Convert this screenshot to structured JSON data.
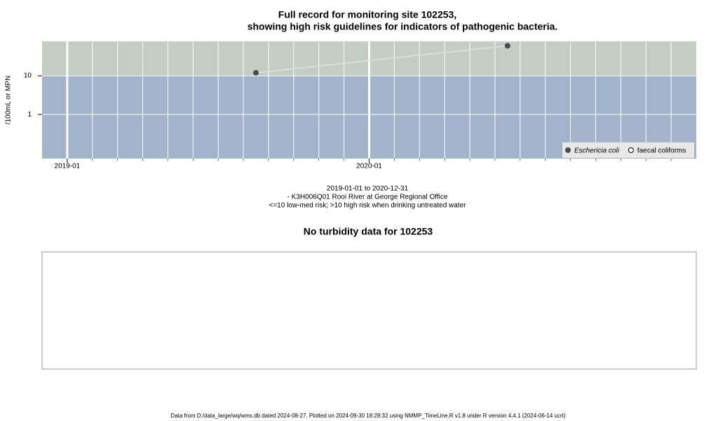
{
  "chart_data": [
    {
      "type": "line",
      "title": [
        "Full record for monitoring site 102253,",
        "showing high risk guidelines for indicators of pathogenic bacteria."
      ],
      "y_label": "/100mL or MPN",
      "caption": [
        "2019-01-01 to 2020-12-31",
        "- K3H006Q01 Rooi River at George Regional Office",
        "<=10 low-med risk; >10 high risk when drinking untreated water"
      ],
      "x": [
        "2019-08",
        "2020-06"
      ],
      "series": [
        {
          "name": "Eschericia coli",
          "color": "#4a4a4a",
          "marker": "filled",
          "values": [
            12,
            60
          ]
        },
        {
          "name": "faecal coliforms",
          "color": "#ffffff",
          "marker": "open",
          "values": [
            null,
            null
          ]
        }
      ],
      "line_color": "#dddddd",
      "xlim": [
        "2018-12",
        "2021-02"
      ],
      "xticks": [
        "2019-01",
        "2020-01"
      ],
      "ylim": [
        0.072,
        78
      ],
      "yticks": [
        1,
        10
      ],
      "log_y": true,
      "guideline": 10,
      "band_colors": {
        "low": "#a3b3cb",
        "high": "#c3cdc3"
      },
      "grid": true,
      "minor_grid": "month",
      "legend": "bottom right"
    },
    {
      "type": "empty",
      "title": "No turbidity data for 102253"
    }
  ],
  "footer": "Data from D:/data_large/wq/wms.db dated 2024-08-27. Plotted on 2024-09-30 18:28:32 using NMMP_TimeLine.R v1.8 under R version 4.4.1 (2024-06-14 ucrt)"
}
